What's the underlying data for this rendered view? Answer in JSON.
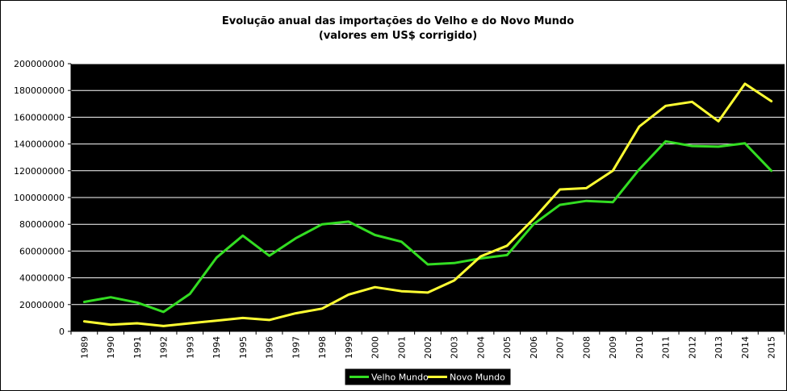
{
  "chart_data": {
    "type": "line",
    "title": "Evolução anual das importações do Velho e do Novo Mundo",
    "subtitle": "(valores em US$ corrigido)",
    "xlabel": "",
    "ylabel": "",
    "x": [
      "1989",
      "1990",
      "1991",
      "1992",
      "1993",
      "1994",
      "1995",
      "1996",
      "1997",
      "1998",
      "1999",
      "2000",
      "2001",
      "2002",
      "2003",
      "2004",
      "2005",
      "2006",
      "2007",
      "2008",
      "2009",
      "2010",
      "2011",
      "2012",
      "2013",
      "2014",
      "2015"
    ],
    "ylim": [
      0,
      200000000
    ],
    "yticks": [
      "0",
      "20000000",
      "40000000",
      "60000000",
      "80000000",
      "100000000",
      "120000000",
      "140000000",
      "160000000",
      "180000000",
      "200000000"
    ],
    "grid": true,
    "legend_position": "bottom",
    "plot_background": "#000000",
    "series": [
      {
        "name": "Velho Mundo",
        "color": "#33dd22",
        "values": [
          22000000,
          25500000,
          21500000,
          14500000,
          28000000,
          55000000,
          71500000,
          56500000,
          69500000,
          80000000,
          82000000,
          72000000,
          67000000,
          50000000,
          51000000,
          54500000,
          57000000,
          80000000,
          94500000,
          97500000,
          96500000,
          121000000,
          142000000,
          138500000,
          138000000,
          140500000,
          120000000
        ]
      },
      {
        "name": "Novo Mundo",
        "color": "#ffff33",
        "values": [
          7500000,
          5000000,
          6000000,
          4000000,
          6000000,
          8000000,
          10000000,
          8500000,
          13500000,
          17000000,
          27500000,
          33000000,
          30000000,
          29000000,
          38000000,
          56000000,
          64000000,
          84000000,
          106000000,
          107000000,
          120000000,
          153000000,
          168500000,
          171500000,
          157000000,
          185000000,
          172000000
        ]
      }
    ]
  }
}
